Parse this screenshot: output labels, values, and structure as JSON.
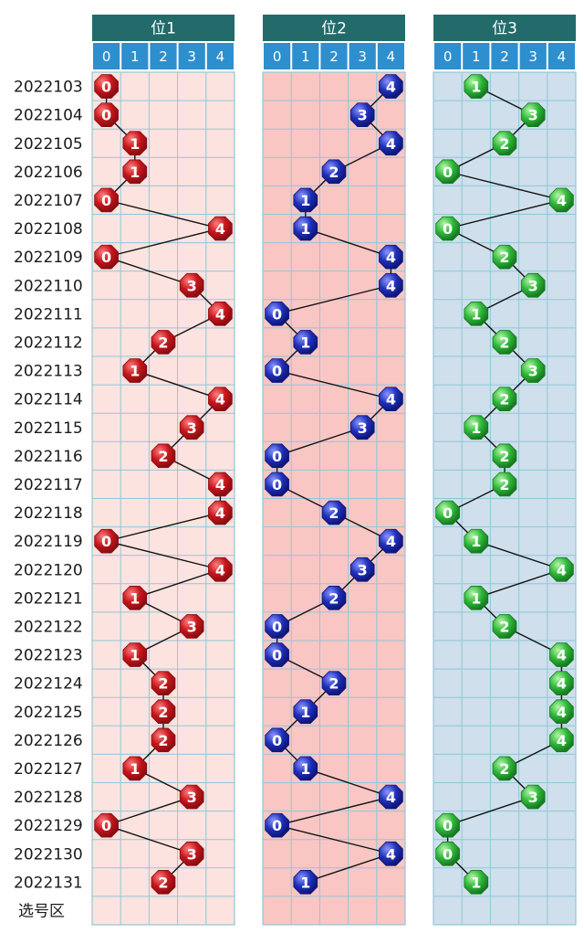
{
  "chart_data": {
    "type": "table",
    "footer_label": "选号区",
    "digits": [
      "0",
      "1",
      "2",
      "3",
      "4"
    ],
    "periods": [
      "2022103",
      "2022104",
      "2022105",
      "2022106",
      "2022107",
      "2022108",
      "2022109",
      "2022110",
      "2022111",
      "2022112",
      "2022113",
      "2022114",
      "2022115",
      "2022116",
      "2022117",
      "2022118",
      "2022119",
      "2022120",
      "2022121",
      "2022122",
      "2022123",
      "2022124",
      "2022125",
      "2022126",
      "2022127",
      "2022128",
      "2022129",
      "2022130",
      "2022131"
    ],
    "panels": [
      {
        "title": "位1",
        "colors": {
          "bg": "#fde3df",
          "grid": "#8fc7d8",
          "header": "#236b6b",
          "col_header": "#2e8fcf",
          "ball": "#c4161c",
          "ball_dark": "#8a0d12"
        },
        "values": [
          0,
          0,
          1,
          1,
          0,
          4,
          0,
          3,
          4,
          2,
          1,
          4,
          3,
          2,
          4,
          4,
          0,
          4,
          1,
          3,
          1,
          2,
          2,
          2,
          1,
          3,
          0,
          3,
          2
        ]
      },
      {
        "title": "位2",
        "colors": {
          "bg": "#f9c6c4",
          "grid": "#8fc7d8",
          "header": "#236b6b",
          "col_header": "#2e8fcf",
          "ball": "#1f2fb8",
          "ball_dark": "#0e167a"
        },
        "values": [
          4,
          3,
          4,
          2,
          1,
          1,
          4,
          4,
          0,
          1,
          0,
          4,
          3,
          0,
          0,
          2,
          4,
          3,
          2,
          0,
          0,
          2,
          1,
          0,
          1,
          4,
          0,
          4,
          1
        ]
      },
      {
        "title": "位3",
        "colors": {
          "bg": "#cfdfec",
          "grid": "#8fc7d8",
          "header": "#236b6b",
          "col_header": "#2e8fcf",
          "ball": "#2fb83a",
          "ball_dark": "#167a20"
        },
        "values": [
          1,
          3,
          2,
          0,
          4,
          0,
          2,
          3,
          1,
          2,
          3,
          2,
          1,
          2,
          2,
          0,
          1,
          4,
          1,
          2,
          4,
          4,
          4,
          4,
          2,
          3,
          0,
          0,
          1
        ]
      }
    ]
  }
}
